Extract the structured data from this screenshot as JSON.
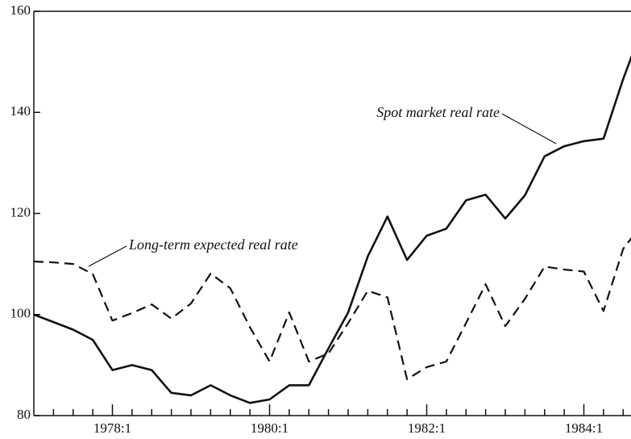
{
  "chart_data": {
    "type": "line",
    "x": [
      1977,
      1977.25,
      1977.5,
      1977.75,
      1978,
      1978.25,
      1978.5,
      1978.75,
      1979,
      1979.25,
      1979.5,
      1979.75,
      1980,
      1980.25,
      1980.5,
      1980.75,
      1981,
      1981.25,
      1981.5,
      1981.75,
      1982,
      1982.25,
      1982.5,
      1982.75,
      1983,
      1983.25,
      1983.5,
      1983.75,
      1984,
      1984.25,
      1984.5,
      1984.75
    ],
    "series": [
      {
        "name": "Spot market real rate",
        "color": "#111",
        "dash": false,
        "values": [
          100,
          98.5,
          97,
          95,
          89,
          90,
          89,
          84.5,
          84,
          86,
          84,
          82.5,
          83.2,
          86,
          86,
          93.3,
          100.4,
          111.5,
          119.4,
          110.8,
          115.6,
          117,
          122.6,
          123.7,
          119,
          123.6,
          131.3,
          133.3,
          134.3,
          134.8,
          146.6,
          157
        ]
      },
      {
        "name": "Long-term expected real rate",
        "color": "#111",
        "dash": true,
        "values": [
          110.5,
          110.3,
          110,
          108,
          98.8,
          100.3,
          102,
          99.2,
          102.2,
          108.1,
          105.2,
          97.5,
          90.7,
          100.4,
          90.7,
          92.3,
          98.3,
          104.7,
          103.4,
          87.2,
          89.6,
          90.7,
          98.3,
          106,
          97.7,
          103.1,
          109.5,
          108.9,
          108.5,
          100.7,
          113,
          118
        ]
      }
    ],
    "xlim": [
      1977,
      1984.6
    ],
    "xticks": [
      {
        "value": 1978,
        "label": "1978:1"
      },
      {
        "value": 1980,
        "label": "1980:1"
      },
      {
        "value": 1982,
        "label": "1982:1"
      },
      {
        "value": 1984,
        "label": "1984:1"
      }
    ],
    "xminorticks": [
      1977.25,
      1977.5,
      1977.75,
      1978.25,
      1978.5,
      1978.75,
      1979,
      1979.25,
      1979.5,
      1979.75,
      1980.25,
      1980.5,
      1980.75,
      1981,
      1981.25,
      1981.5,
      1981.75,
      1982.25,
      1982.5,
      1982.75,
      1983,
      1983.25,
      1983.5,
      1983.75,
      1984.25,
      1984.5
    ],
    "ylim": [
      80,
      160
    ],
    "yticks": [
      80,
      100,
      120,
      140,
      160
    ]
  }
}
